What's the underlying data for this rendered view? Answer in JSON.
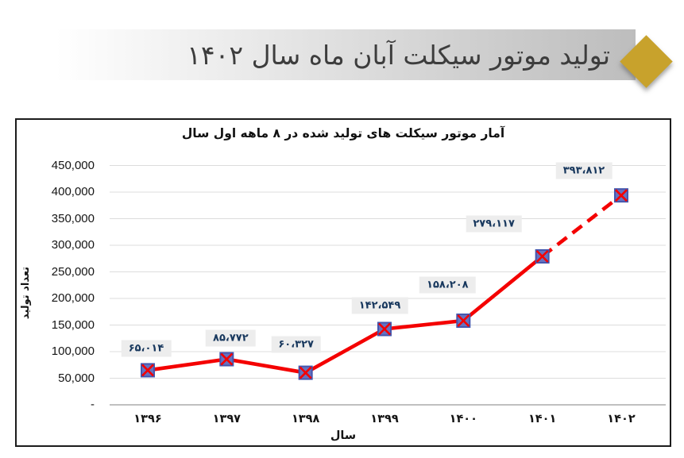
{
  "header": {
    "title": "تولید موتور سیکلت آبان ماه سال ۱۴۰۲",
    "accent_color": "#C8A22C"
  },
  "chart_data": {
    "type": "line",
    "title": "آمار موتور سیکلت های تولید شده در ۸ ماهه اول سال",
    "xlabel": "سال",
    "ylabel": "تعداد تولید",
    "categories": [
      "۱۳۹۶",
      "۱۳۹۷",
      "۱۳۹۸",
      "۱۳۹۹",
      "۱۴۰۰",
      "۱۴۰۱",
      "۱۴۰۲"
    ],
    "x_years": [
      1396,
      1397,
      1398,
      1399,
      1400,
      1401,
      1402
    ],
    "values": [
      65014,
      85772,
      60327,
      142549,
      158208,
      279117,
      393812
    ],
    "data_labels": [
      "۶۵،۰۱۴",
      "۸۵،۷۷۲",
      "۶۰،۳۲۷",
      "۱۴۲،۵۴۹",
      "۱۵۸،۲۰۸",
      "۲۷۹،۱۱۷",
      "۳۹۳،۸۱۲"
    ],
    "y_ticks": [
      {
        "value": 450000,
        "label": "450,000"
      },
      {
        "value": 400000,
        "label": "400,000"
      },
      {
        "value": 350000,
        "label": "350,000"
      },
      {
        "value": 300000,
        "label": "300,000"
      },
      {
        "value": 250000,
        "label": "250,000"
      },
      {
        "value": 200000,
        "label": "200,000"
      },
      {
        "value": 150000,
        "label": "150,000"
      },
      {
        "value": 100000,
        "label": "100,000"
      },
      {
        "value": 50000,
        "label": "50,000"
      },
      {
        "value": 0,
        "label": "-"
      }
    ],
    "ylim": [
      0,
      450000
    ],
    "grid": true,
    "legend": "none",
    "style": {
      "line_color": "#F40000",
      "dashed_last_segment": true,
      "marker": "square-x",
      "marker_fill": "#6672C0",
      "marker_border": "#4456AE",
      "label_bg": "#EDEDED",
      "label_color": "#17375D",
      "grid_color": "#DCDCDC",
      "axis_color": "#ABABAB"
    }
  }
}
